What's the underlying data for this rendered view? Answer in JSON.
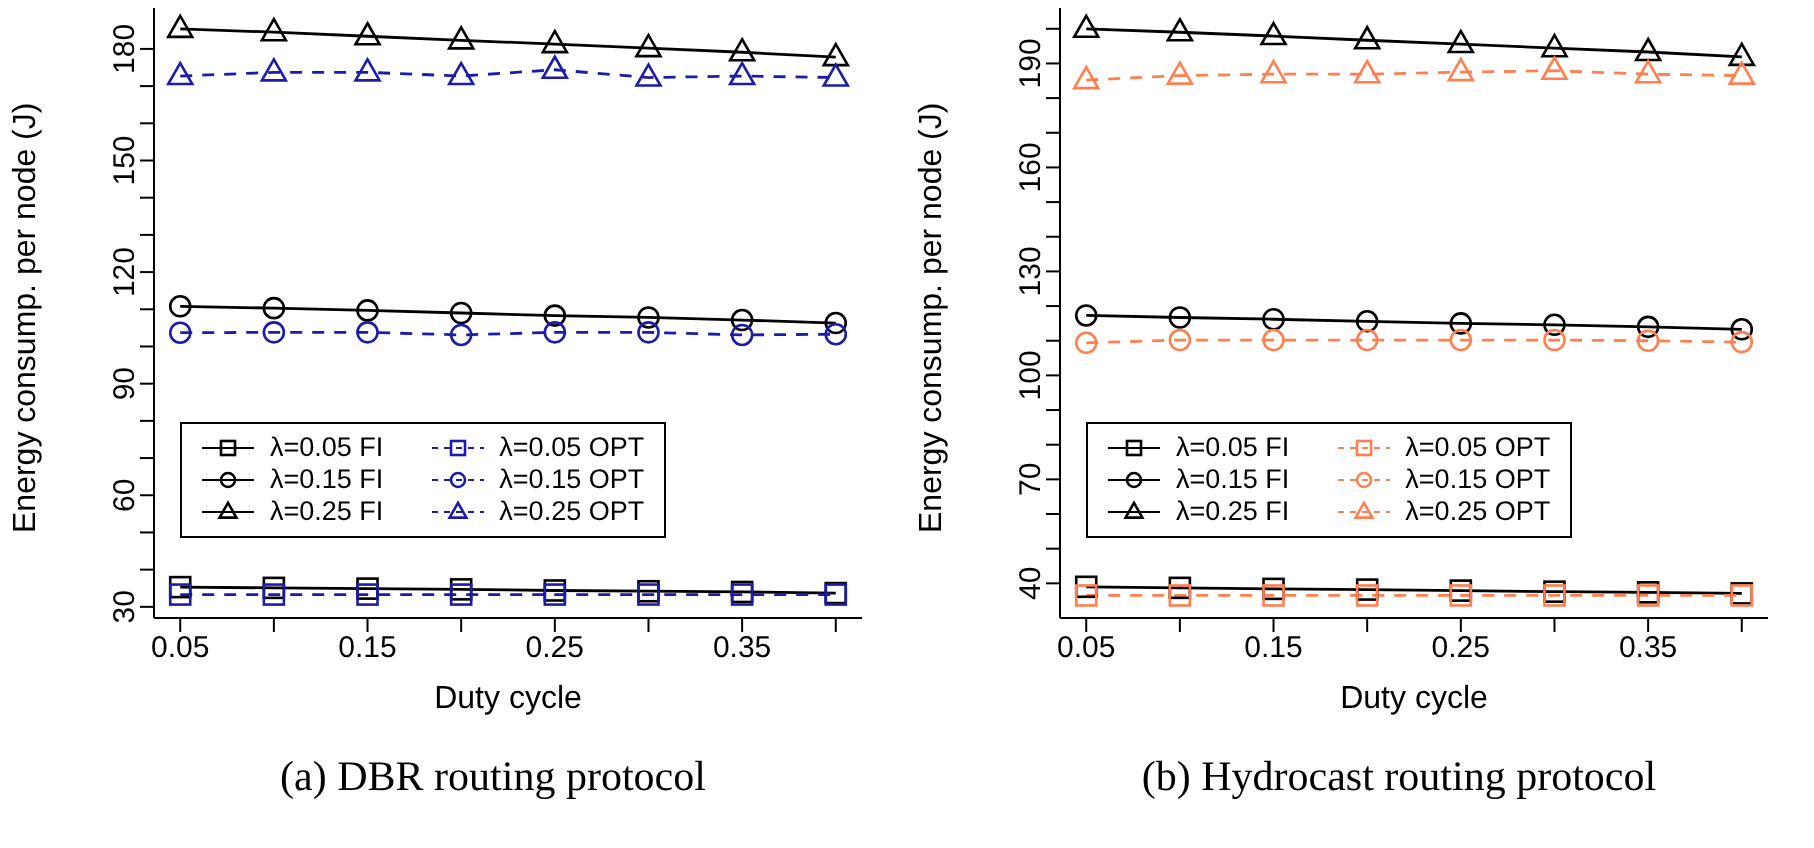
{
  "chart_data": [
    {
      "type": "line",
      "xlabel": "Duty cycle",
      "ylabel": "Energy consump. per node (J)",
      "annotations": [
        "(a) DBR routing protocol"
      ],
      "x": [
        0.05,
        0.1,
        0.15,
        0.2,
        0.25,
        0.3,
        0.35,
        0.4
      ],
      "xlim": [
        0.036,
        0.414
      ],
      "xticks": [
        0.05,
        {
          "value": 0.1,
          "label": null
        },
        0.15,
        {
          "value": 0.2,
          "label": null
        },
        0.25,
        {
          "value": 0.3,
          "label": null
        },
        0.35,
        {
          "value": 0.4,
          "label": null
        }
      ],
      "ylim": [
        27,
        191
      ],
      "yticks": [
        30,
        {
          "value": 40,
          "label": null
        },
        {
          "value": 50,
          "label": null
        },
        60,
        {
          "value": 70,
          "label": null
        },
        {
          "value": 80,
          "label": null
        },
        90,
        {
          "value": 100,
          "label": null
        },
        {
          "value": 110,
          "label": null
        },
        120,
        {
          "value": 130,
          "label": null
        },
        {
          "value": 140,
          "label": null
        },
        150,
        {
          "value": 160,
          "label": null
        },
        {
          "value": 170,
          "label": null
        },
        180
      ],
      "legend": "bottom left",
      "grid": false,
      "series": [
        {
          "name": "λ=0.05 FI",
          "color": "#000000",
          "marker": "square",
          "line_style": "solid",
          "values": [
            35.3,
            35.1,
            34.9,
            34.7,
            34.4,
            34.2,
            34.0,
            33.7
          ]
        },
        {
          "name": "λ=0.15 FI",
          "color": "#000000",
          "marker": "circle",
          "line_style": "solid",
          "values": [
            110.8,
            110.3,
            109.7,
            109.0,
            108.3,
            107.8,
            107.1,
            106.3
          ]
        },
        {
          "name": "λ=0.25 FI",
          "color": "#000000",
          "marker": "triangle",
          "line_style": "solid",
          "values": [
            185.4,
            184.5,
            183.4,
            182.3,
            181.3,
            180.2,
            179.1,
            177.8
          ]
        },
        {
          "name": "λ=0.05 OPT",
          "color": "#1c1ca8",
          "marker": "square",
          "line_style": "dashed",
          "values": [
            33.3,
            33.3,
            33.3,
            33.3,
            33.3,
            33.3,
            33.3,
            33.3
          ]
        },
        {
          "name": "λ=0.15 OPT",
          "color": "#1c1ca8",
          "marker": "circle",
          "line_style": "dashed",
          "values": [
            103.7,
            103.8,
            103.8,
            103.1,
            103.8,
            103.8,
            103.1,
            103.3
          ]
        },
        {
          "name": "λ=0.25 OPT",
          "color": "#1c1ca8",
          "marker": "triangle",
          "line_style": "dashed",
          "values": [
            172.7,
            173.7,
            173.7,
            172.7,
            174.4,
            172.3,
            172.7,
            172.3
          ]
        }
      ]
    },
    {
      "type": "line",
      "xlabel": "Duty cycle",
      "ylabel": "Energy consump. per node (J)",
      "annotations": [
        "(b) Hydrocast routing protocol"
      ],
      "x": [
        0.05,
        0.1,
        0.15,
        0.2,
        0.25,
        0.3,
        0.35,
        0.4
      ],
      "xlim": [
        0.036,
        0.414
      ],
      "xticks": [
        0.05,
        {
          "value": 0.1,
          "label": null
        },
        0.15,
        {
          "value": 0.2,
          "label": null
        },
        0.25,
        {
          "value": 0.3,
          "label": null
        },
        0.35,
        {
          "value": 0.4,
          "label": null
        }
      ],
      "ylim": [
        30,
        206
      ],
      "yticks": [
        40,
        {
          "value": 50,
          "label": null
        },
        {
          "value": 60,
          "label": null
        },
        70,
        {
          "value": 80,
          "label": null
        },
        {
          "value": 90,
          "label": null
        },
        100,
        {
          "value": 110,
          "label": null
        },
        {
          "value": 120,
          "label": null
        },
        130,
        {
          "value": 140,
          "label": null
        },
        {
          "value": 150,
          "label": null
        },
        160,
        {
          "value": 170,
          "label": null
        },
        {
          "value": 180,
          "label": null
        },
        190,
        {
          "value": 200,
          "label": null
        }
      ],
      "legend": "bottom left",
      "grid": false,
      "series": [
        {
          "name": "λ=0.05 FI",
          "color": "#000000",
          "marker": "square",
          "line_style": "solid",
          "values": [
            39.0,
            38.7,
            38.4,
            38.2,
            37.9,
            37.6,
            37.4,
            37.1
          ]
        },
        {
          "name": "λ=0.15 FI",
          "color": "#000000",
          "marker": "circle",
          "line_style": "solid",
          "values": [
            117.3,
            116.7,
            116.2,
            115.6,
            115.0,
            114.6,
            114.0,
            113.3
          ]
        },
        {
          "name": "λ=0.25 FI",
          "color": "#000000",
          "marker": "triangle",
          "line_style": "solid",
          "values": [
            200.0,
            199.0,
            197.9,
            196.7,
            195.6,
            194.4,
            193.3,
            191.9
          ]
        },
        {
          "name": "λ=0.05 OPT",
          "color": "#ff7f50",
          "marker": "square",
          "line_style": "dashed",
          "values": [
            36.5,
            36.5,
            36.5,
            36.5,
            36.5,
            36.5,
            36.5,
            36.5
          ]
        },
        {
          "name": "λ=0.15 OPT",
          "color": "#ff7f50",
          "marker": "circle",
          "line_style": "dashed",
          "values": [
            109.4,
            110.2,
            110.2,
            110.2,
            110.2,
            110.2,
            110.0,
            109.6
          ]
        },
        {
          "name": "λ=0.25 OPT",
          "color": "#ff7f50",
          "marker": "triangle",
          "line_style": "dashed",
          "values": [
            185.2,
            186.5,
            186.9,
            186.9,
            187.5,
            187.9,
            186.9,
            186.5
          ]
        }
      ]
    }
  ]
}
